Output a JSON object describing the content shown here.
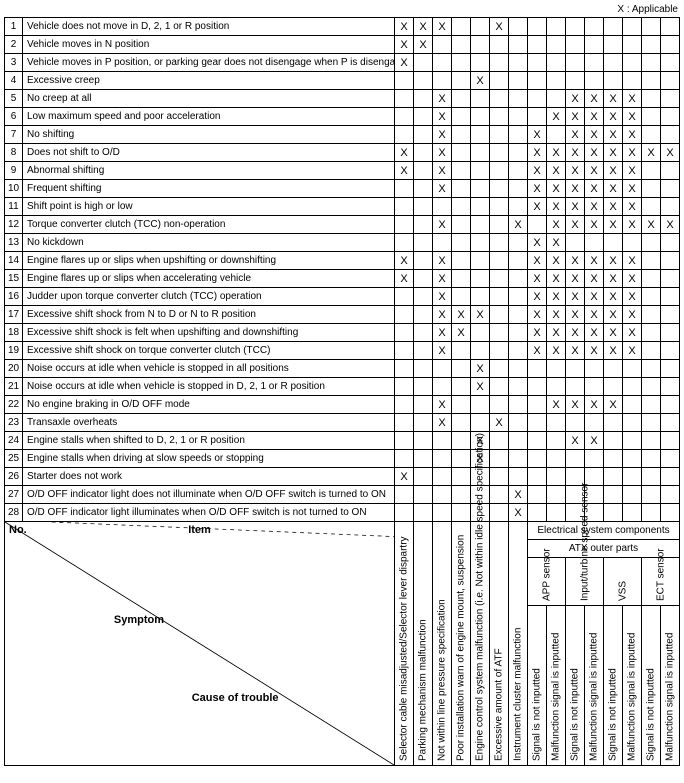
{
  "legend": "X : Applicable",
  "headerLabels": {
    "no": "No.",
    "item": "Item",
    "symptom": "Symptom",
    "cause": "Cause of trouble",
    "elecGroup": "Electrical system components",
    "atxGroup": "ATX outer parts"
  },
  "columns": [
    "Selector cable misadjusted/Selector lever dispartry",
    "Parking mechanism malfunction",
    "Not within line pressure specification",
    "Poor installation warn of engine mount, suspension",
    "Engine control system malfunction (i.e. Not within idle speed specification)",
    "Excessive amount of ATF",
    "Instrument cluster malfunction"
  ],
  "sensorGroups": [
    {
      "label": "APP sensor",
      "sub": [
        "Signal is not inputted",
        "Malfunction signal is inputted"
      ]
    },
    {
      "label": "Input/turbine speed sensor",
      "sub": [
        "Signal is not inputted",
        "Malfunction signal is inputted"
      ]
    },
    {
      "label": "VSS",
      "sub": [
        "Signal is not inputted",
        "Malfunction signal is inputted"
      ]
    },
    {
      "label": "ECT sensor",
      "sub": [
        "Signal is not inputted",
        "Malfunction signal is inputted"
      ]
    }
  ],
  "rows": [
    {
      "n": "1",
      "d": "Vehicle does not move in D, 2, 1 or R position",
      "m": [
        "X",
        "X",
        "X",
        "",
        "",
        "X",
        "",
        "",
        "",
        "",
        "",
        "",
        "",
        "",
        ""
      ]
    },
    {
      "n": "2",
      "d": "Vehicle moves in N position",
      "m": [
        "X",
        "X",
        "",
        "",
        "",
        "",
        "",
        "",
        "",
        "",
        "",
        "",
        "",
        "",
        ""
      ]
    },
    {
      "n": "3",
      "d": "Vehicle moves in P position, or parking gear does not disengage when P is disengaged",
      "m": [
        "X",
        "",
        "",
        "",
        "",
        "",
        "",
        "",
        "",
        "",
        "",
        "",
        "",
        "",
        ""
      ]
    },
    {
      "n": "4",
      "d": "Excessive creep",
      "m": [
        "",
        "",
        "",
        "",
        "X",
        "",
        "",
        "",
        "",
        "",
        "",
        "",
        "",
        "",
        ""
      ]
    },
    {
      "n": "5",
      "d": "No creep at all",
      "m": [
        "",
        "",
        "X",
        "",
        "",
        "",
        "",
        "",
        "",
        "X",
        "X",
        "X",
        "X",
        "",
        ""
      ]
    },
    {
      "n": "6",
      "d": "Low maximum speed and poor acceleration",
      "m": [
        "",
        "",
        "X",
        "",
        "",
        "",
        "",
        "",
        "X",
        "X",
        "X",
        "X",
        "X",
        "",
        ""
      ]
    },
    {
      "n": "7",
      "d": "No shifting",
      "m": [
        "",
        "",
        "X",
        "",
        "",
        "",
        "",
        "X",
        "",
        "X",
        "X",
        "X",
        "X",
        "",
        ""
      ]
    },
    {
      "n": "8",
      "d": "Does not shift to O/D",
      "m": [
        "X",
        "",
        "X",
        "",
        "",
        "",
        "",
        "X",
        "X",
        "X",
        "X",
        "X",
        "X",
        "X",
        "X"
      ]
    },
    {
      "n": "9",
      "d": "Abnormal shifting",
      "m": [
        "X",
        "",
        "X",
        "",
        "",
        "",
        "",
        "X",
        "X",
        "X",
        "X",
        "X",
        "X",
        "",
        ""
      ]
    },
    {
      "n": "10",
      "d": "Frequent shifting",
      "m": [
        "",
        "",
        "X",
        "",
        "",
        "",
        "",
        "X",
        "X",
        "X",
        "X",
        "X",
        "X",
        "",
        ""
      ]
    },
    {
      "n": "11",
      "d": "Shift point is high or low",
      "m": [
        "",
        "",
        "",
        "",
        "",
        "",
        "",
        "X",
        "X",
        "X",
        "X",
        "X",
        "X",
        "",
        ""
      ]
    },
    {
      "n": "12",
      "d": "Torque converter clutch (TCC) non-operation",
      "m": [
        "",
        "",
        "X",
        "",
        "",
        "",
        "X",
        "",
        "X",
        "X",
        "X",
        "X",
        "X",
        "X",
        "X"
      ]
    },
    {
      "n": "13",
      "d": "No kickdown",
      "m": [
        "",
        "",
        "",
        "",
        "",
        "",
        "",
        "X",
        "X",
        "",
        "",
        "",
        "",
        "",
        ""
      ]
    },
    {
      "n": "14",
      "d": "Engine flares up or slips when upshifting or downshifting",
      "m": [
        "X",
        "",
        "X",
        "",
        "",
        "",
        "",
        "X",
        "X",
        "X",
        "X",
        "X",
        "X",
        "",
        ""
      ]
    },
    {
      "n": "15",
      "d": "Engine flares up or slips when accelerating vehicle",
      "m": [
        "X",
        "",
        "X",
        "",
        "",
        "",
        "",
        "X",
        "X",
        "X",
        "X",
        "X",
        "X",
        "",
        ""
      ]
    },
    {
      "n": "16",
      "d": "Judder upon torque converter clutch (TCC) operation",
      "m": [
        "",
        "",
        "X",
        "",
        "",
        "",
        "",
        "X",
        "X",
        "X",
        "X",
        "X",
        "X",
        "",
        ""
      ]
    },
    {
      "n": "17",
      "d": "Excessive shift shock from N to D or N to R position",
      "m": [
        "",
        "",
        "X",
        "X",
        "X",
        "",
        "",
        "X",
        "X",
        "X",
        "X",
        "X",
        "X",
        "",
        ""
      ]
    },
    {
      "n": "18",
      "d": "Excessive shift shock is felt when upshifting and downshifting",
      "m": [
        "",
        "",
        "X",
        "X",
        "",
        "",
        "",
        "X",
        "X",
        "X",
        "X",
        "X",
        "X",
        "",
        ""
      ]
    },
    {
      "n": "19",
      "d": "Excessive shift shock on torque converter clutch (TCC)",
      "m": [
        "",
        "",
        "X",
        "",
        "",
        "",
        "",
        "X",
        "X",
        "X",
        "X",
        "X",
        "X",
        "",
        ""
      ]
    },
    {
      "n": "20",
      "d": "Noise occurs at idle when vehicle is stopped in all positions",
      "m": [
        "",
        "",
        "",
        "",
        "X",
        "",
        "",
        "",
        "",
        "",
        "",
        "",
        "",
        "",
        ""
      ]
    },
    {
      "n": "21",
      "d": "Noise occurs at idle when vehicle is stopped in D, 2, 1 or R position",
      "m": [
        "",
        "",
        "",
        "",
        "X",
        "",
        "",
        "",
        "",
        "",
        "",
        "",
        "",
        "",
        ""
      ]
    },
    {
      "n": "22",
      "d": "No engine braking in O/D OFF mode",
      "m": [
        "",
        "",
        "X",
        "",
        "",
        "",
        "",
        "",
        "X",
        "X",
        "X",
        "X",
        "",
        "",
        ""
      ]
    },
    {
      "n": "23",
      "d": "Transaxle overheats",
      "m": [
        "",
        "",
        "X",
        "",
        "",
        "X",
        "",
        "",
        "",
        "",
        "",
        "",
        "",
        "",
        ""
      ]
    },
    {
      "n": "24",
      "d": "Engine stalls when shifted to D, 2, 1 or R position",
      "m": [
        "",
        "",
        "",
        "",
        "X",
        "",
        "",
        "",
        "",
        "X",
        "X",
        "",
        "",
        "",
        ""
      ]
    },
    {
      "n": "25",
      "d": "Engine stalls when driving at slow speeds or stopping",
      "m": [
        "",
        "",
        "",
        "",
        "X",
        "",
        "",
        "",
        "",
        "",
        "",
        "",
        "",
        "",
        ""
      ]
    },
    {
      "n": "26",
      "d": "Starter does not work",
      "m": [
        "X",
        "",
        "",
        "",
        "",
        "",
        "",
        "",
        "",
        "",
        "",
        "",
        "",
        "",
        ""
      ]
    },
    {
      "n": "27",
      "d": "O/D OFF indicator light does not illuminate when O/D OFF switch is turned to ON",
      "m": [
        "",
        "",
        "",
        "",
        "",
        "",
        "X",
        "",
        "",
        "",
        "",
        "",
        "",
        "",
        ""
      ]
    },
    {
      "n": "28",
      "d": "O/D OFF indicator light illuminates when O/D OFF switch is not turned to ON",
      "m": [
        "",
        "",
        "",
        "",
        "",
        "",
        "X",
        "",
        "",
        "",
        "",
        "",
        "",
        "",
        ""
      ]
    }
  ]
}
